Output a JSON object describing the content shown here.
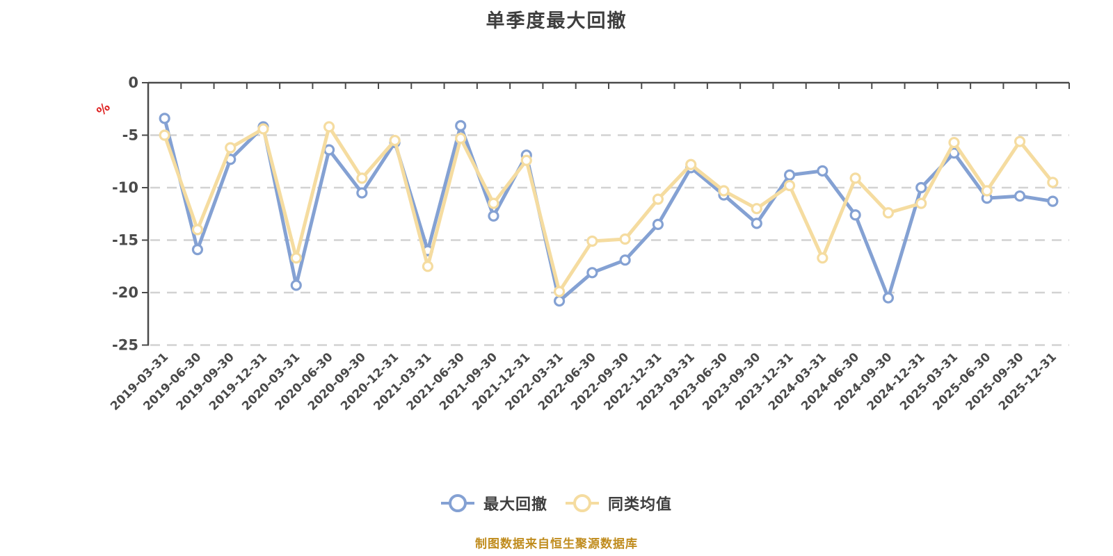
{
  "header": {
    "title": "单季度最大回撤"
  },
  "y_axis": {
    "unit_label": "%",
    "unit_color": "#de2121",
    "tick_labels": [
      "0",
      "-5",
      "-10",
      "-15",
      "-20",
      "-25"
    ]
  },
  "legend": {
    "items": [
      {
        "label": "最大回撤",
        "color": "#84a1d3"
      },
      {
        "label": "同类均值",
        "color": "#f5dca0"
      }
    ]
  },
  "footer": {
    "caption": "制图数据来自恒生聚源数据库",
    "caption_color": "#c08c1e"
  },
  "chart_data": {
    "type": "line",
    "title": "单季度最大回撤",
    "categories": [
      "2019-03-31",
      "2019-06-30",
      "2019-09-30",
      "2019-12-31",
      "2020-03-31",
      "2020-06-30",
      "2020-09-30",
      "2020-12-31",
      "2021-03-31",
      "2021-06-30",
      "2021-09-30",
      "2021-12-31",
      "2022-03-31",
      "2022-06-30",
      "2022-09-30",
      "2022-12-31",
      "2023-03-31",
      "2023-06-30",
      "2023-09-30",
      "2023-12-31",
      "2024-03-31",
      "2024-06-30",
      "2024-09-30",
      "2024-12-31",
      "2025-03-31",
      "2025-06-30",
      "2025-09-30",
      "2025-12-31"
    ],
    "series": [
      {
        "name": "最大回撤",
        "color": "#84a1d3",
        "marker": "circle-white-fill",
        "values": [
          -3.4,
          -15.9,
          -7.3,
          -4.2,
          -19.3,
          -6.4,
          -10.5,
          -5.7,
          -16.0,
          -4.1,
          -12.7,
          -6.9,
          -20.8,
          -18.1,
          -16.9,
          -13.5,
          -8.1,
          -10.7,
          -13.4,
          -8.8,
          -8.4,
          -12.6,
          -20.5,
          -10.0,
          -6.7,
          -11.0,
          -10.8,
          -11.3
        ]
      },
      {
        "name": "同类均值",
        "color": "#f5dca0",
        "marker": "circle-white-fill",
        "values": [
          -5.0,
          -14.0,
          -6.2,
          -4.4,
          -16.7,
          -4.2,
          -9.1,
          -5.5,
          -17.5,
          -5.3,
          -11.5,
          -7.4,
          -19.9,
          -15.1,
          -14.9,
          -11.1,
          -7.8,
          -10.3,
          -12.0,
          -9.8,
          -16.7,
          -9.1,
          -12.4,
          -11.5,
          -5.7,
          -10.3,
          -5.6,
          -9.5
        ]
      }
    ],
    "xlabel": "",
    "ylabel": "%",
    "ylim": [
      -25,
      0
    ],
    "y_ticks": [
      0,
      -5,
      -10,
      -15,
      -20,
      -25
    ],
    "grid": "horizontal-dashed",
    "gridline_color": "#d2d2d2",
    "axis_color": "#4a4a4a",
    "label_color": "#4a4a4a",
    "x_label_rotation": 45,
    "legend_position": "bottom"
  }
}
